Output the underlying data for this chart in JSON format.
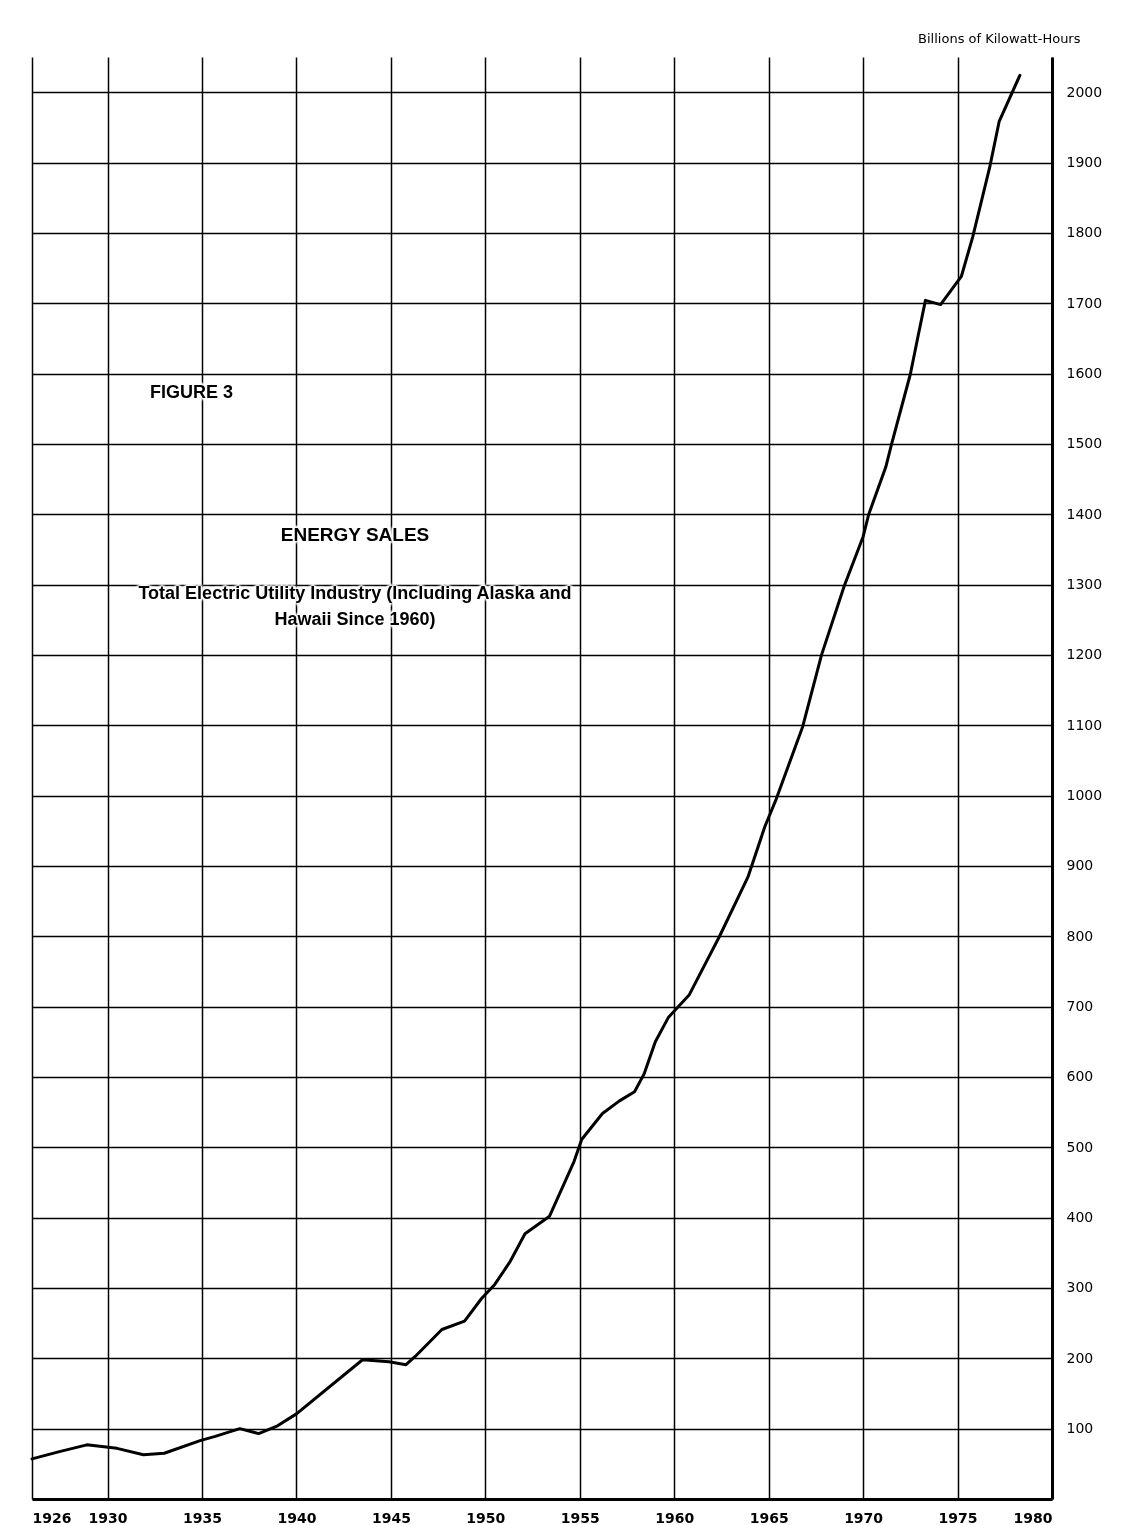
{
  "chart_data": {
    "type": "line",
    "title": "ENERGY SALES",
    "subtitle": "Total Electric Utility Industry (Including Alaska and Hawaii Since 1960)",
    "ylabel": "Billions of Kilowatt-Hours",
    "annotations": [
      "FIGURE 3"
    ],
    "x": [
      1926,
      1927.4,
      1928.9,
      1930.5,
      1931.9,
      1933,
      1934.9,
      1935.7,
      1937,
      1938,
      1939,
      1940,
      1943.5,
      1944.9,
      1945.8,
      1946.3,
      1947.7,
      1948.9,
      1949.8,
      1950.5,
      1951.3,
      1952.1,
      1953.4,
      1954.7,
      1955.1,
      1956.2,
      1957.1,
      1957.9,
      1958.4,
      1959,
      1959.7,
      1960.8,
      1962.4,
      1963.9,
      1964.8,
      1965.4,
      1966.8,
      1967.8,
      1969,
      1970,
      1970.3,
      1971.2,
      1971.5,
      1972.5,
      1972.9,
      1973.3,
      1974.1,
      1975.2,
      1975.8,
      1976.7,
      1977.2,
      1978.3
    ],
    "series": [
      {
        "color": "#000000",
        "values": [
          57,
          67,
          77,
          72,
          63,
          65,
          83,
          89,
          100,
          93,
          104,
          121,
          198,
          195,
          191,
          203,
          241,
          253,
          285,
          305,
          337,
          377,
          402,
          480,
          511,
          548,
          566,
          579,
          604,
          650,
          685,
          717,
          800,
          884,
          956,
          995,
          1098,
          1200,
          1298,
          1368,
          1400,
          1467,
          1499,
          1599,
          1652,
          1704,
          1698,
          1738,
          1794,
          1893,
          1958,
          2024
        ]
      }
    ],
    "xlim": [
      1926,
      1980
    ],
    "xticks": [
      1926,
      1930,
      1935,
      1940,
      1945,
      1950,
      1955,
      1960,
      1965,
      1970,
      1975,
      1980
    ],
    "ylim": [
      0,
      2050
    ],
    "yticks": [
      100,
      200,
      300,
      400,
      500,
      600,
      700,
      800,
      900,
      1000,
      1100,
      1200,
      1300,
      1400,
      1500,
      1600,
      1700,
      1800,
      1900,
      2000
    ],
    "grid": true,
    "marker": "none",
    "line_style": "solid"
  }
}
